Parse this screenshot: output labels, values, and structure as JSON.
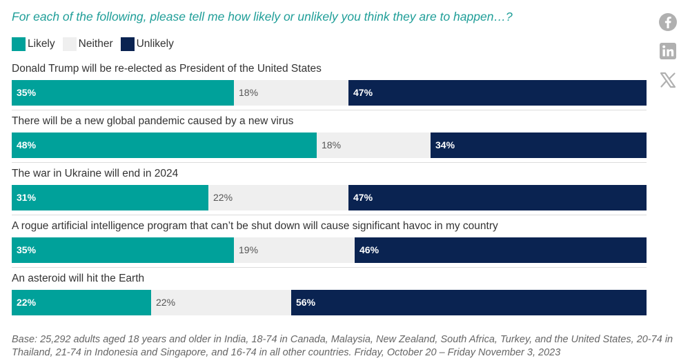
{
  "chart_data": {
    "type": "bar",
    "orientation": "horizontal",
    "stacked": true,
    "title": "For each of the following, please tell me how likely or unlikely you think they are to happen…?",
    "legend_position": "top-left",
    "grid": false,
    "xlim": [
      0,
      100
    ],
    "categories": [
      "Donald Trump will be re-elected as President of the United States",
      "There will be a new global pandemic caused by a new virus",
      "The war in Ukraine will end in 2024",
      "A rogue artificial intelligence program that can’t be shut down will cause significant havoc in my country",
      "An asteroid will hit the Earth"
    ],
    "series": [
      {
        "name": "Likely",
        "color": "#00a19a",
        "values": [
          35,
          48,
          31,
          35,
          22
        ],
        "labels": [
          "35%",
          "48%",
          "31%",
          "35%",
          "22%"
        ]
      },
      {
        "name": "Neither",
        "color": "#efefef",
        "values": [
          18,
          18,
          22,
          19,
          22
        ],
        "labels": [
          "18%",
          "18%",
          "22%",
          "19%",
          "22%"
        ]
      },
      {
        "name": "Unlikely",
        "color": "#0a2351",
        "values": [
          47,
          34,
          47,
          46,
          56
        ],
        "labels": [
          "47%",
          "34%",
          "47%",
          "46%",
          "56%"
        ]
      }
    ],
    "footnote": "Base: 25,292 adults aged 18 years and older in India, 18-74 in Canada, Malaysia, New Zealand, South Africa, Turkey, and the United States, 20-74 in Thailand, 21-74 in Indonesia and Singapore, and 16-74 in all other countries. Friday, October 20 – Friday November 3, 2023"
  },
  "share": {
    "icons": [
      "facebook-icon",
      "linkedin-icon",
      "x-icon"
    ],
    "icon_color": "#b0b0b0"
  }
}
